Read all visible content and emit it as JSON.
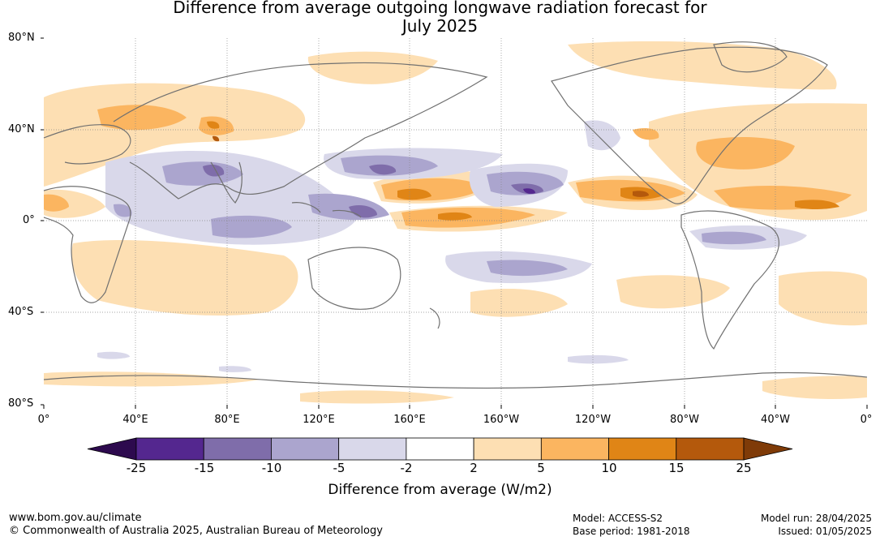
{
  "title": {
    "line1": "Difference from average outgoing longwave radiation forecast for",
    "line2": "July 2025"
  },
  "axes": {
    "lat_labels": [
      "80°N",
      "40°N",
      "0°",
      "40°S",
      "80°S"
    ],
    "lon_labels": [
      "0°",
      "40°E",
      "80°E",
      "120°E",
      "160°E",
      "160°W",
      "120°W",
      "80°W",
      "40°W",
      "0°"
    ]
  },
  "colorbar": {
    "ticks": [
      "-25",
      "-15",
      "-10",
      "-5",
      "-2",
      "2",
      "5",
      "10",
      "15",
      "25"
    ],
    "colors": [
      "#2d0a4e",
      "#54278f",
      "#7f6daa",
      "#aba5ce",
      "#d9d8ea",
      "#ffffff",
      "#fddfb3",
      "#fbb560",
      "#e08516",
      "#b4590c",
      "#7f3b08"
    ],
    "label": "Difference from average (W/m2)"
  },
  "footer": {
    "url": "www.bom.gov.au/climate",
    "copyright": "© Commonwealth of Australia 2025, Australian Bureau of Meteorology",
    "model": "Model: ACCESS-S2",
    "base_period": "Base period: 1981-2018",
    "model_run": "Model run: 28/04/2025",
    "issued": "Issued: 01/05/2025"
  }
}
